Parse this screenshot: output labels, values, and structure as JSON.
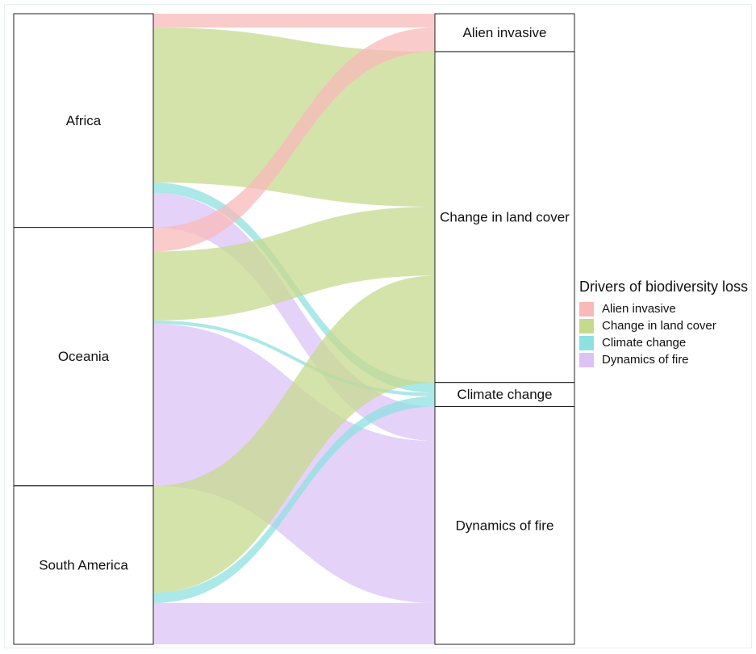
{
  "chart_data": {
    "type": "alluvial",
    "legend": {
      "title": "Drivers of biodiversity loss",
      "position": "right",
      "items": [
        {
          "label": "Alien invasive",
          "color": "#f8b9b9"
        },
        {
          "label": "Change in land cover",
          "color": "#c6da8e"
        },
        {
          "label": "Climate change",
          "color": "#8fe0e0"
        },
        {
          "label": "Dynamics of fire",
          "color": "#dcc3f7"
        }
      ]
    },
    "left_axis": [
      "Africa",
      "Oceania",
      "South America"
    ],
    "right_axis": [
      "Alien invasive",
      "Change in land cover",
      "Climate change",
      "Dynamics of fire"
    ],
    "flows": [
      {
        "from": "Africa",
        "to": "Alien invasive",
        "value": 4
      },
      {
        "from": "Africa",
        "to": "Change in land cover",
        "value": 45
      },
      {
        "from": "Africa",
        "to": "Climate change",
        "value": 3
      },
      {
        "from": "Africa",
        "to": "Dynamics of fire",
        "value": 10
      },
      {
        "from": "Oceania",
        "to": "Alien invasive",
        "value": 7
      },
      {
        "from": "Oceania",
        "to": "Change in land cover",
        "value": 20
      },
      {
        "from": "Oceania",
        "to": "Climate change",
        "value": 1
      },
      {
        "from": "Oceania",
        "to": "Dynamics of fire",
        "value": 47
      },
      {
        "from": "South America",
        "to": "Change in land cover",
        "value": 31
      },
      {
        "from": "South America",
        "to": "Climate change",
        "value": 3
      },
      {
        "from": "South America",
        "to": "Dynamics of fire",
        "value": 12
      }
    ]
  }
}
